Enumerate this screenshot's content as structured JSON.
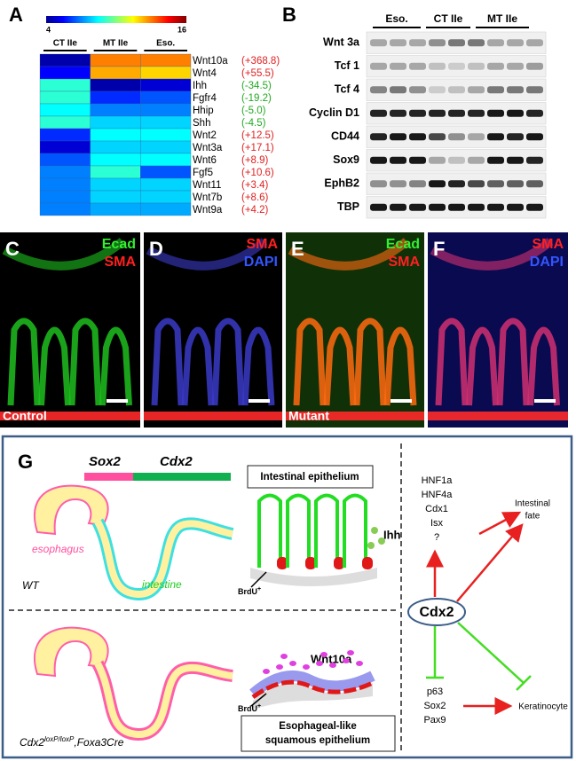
{
  "panel_a": {
    "label": "A",
    "colorbar_range": [
      4,
      16
    ],
    "groups": [
      "CT IIe",
      "MT IIe",
      "Eso."
    ],
    "genes": [
      "Wnt10a",
      "Wnt4",
      "Ihh",
      "Fgfr4",
      "Hhip",
      "Shh",
      "Wnt2",
      "Wnt3a",
      "Wnt6",
      "Fgf5",
      "Wnt11",
      "Wnt7b",
      "Wnt9a"
    ],
    "fold_changes": [
      "(+368.8)",
      "(+55.5)",
      "(-34.5)",
      "(-19.2)",
      "(-5.0)",
      "(-4.5)",
      "(+12.5)",
      "(+17.1)",
      "(+8.9)",
      "(+10.6)",
      "(+3.4)",
      "(+8.6)",
      "(+4.2)"
    ],
    "values": [
      [
        4.5,
        13,
        13
      ],
      [
        5.5,
        12.5,
        12
      ],
      [
        9,
        4.5,
        5
      ],
      [
        9,
        6,
        6.5
      ],
      [
        8.5,
        7,
        7
      ],
      [
        9,
        8,
        8
      ],
      [
        6,
        8.5,
        8.5
      ],
      [
        5,
        8,
        8
      ],
      [
        6.5,
        8.5,
        8.5
      ],
      [
        7,
        9,
        6.5
      ],
      [
        7,
        8,
        8
      ],
      [
        7,
        8,
        8
      ],
      [
        7,
        7.5,
        7.5
      ]
    ]
  },
  "panel_b": {
    "label": "B",
    "groups": [
      "Eso.",
      "CT IIe",
      "MT IIe"
    ],
    "proteins": [
      "Wnt 3a",
      "Tcf 1",
      "Tcf 4",
      "Cyclin D1",
      "CD44",
      "Sox9",
      "EphB2",
      "TBP"
    ]
  },
  "panel_c": {
    "label": "C",
    "stains": [
      "Ecad",
      "SMA"
    ],
    "condition": "Control"
  },
  "panel_d": {
    "label": "D",
    "stains": [
      "SMA",
      "DAPI"
    ]
  },
  "panel_e": {
    "label": "E",
    "stains": [
      "Ecad",
      "SMA"
    ],
    "condition": "Mutant"
  },
  "panel_f": {
    "label": "F",
    "stains": [
      "SMA",
      "DAPI"
    ]
  },
  "panel_g": {
    "label": "G",
    "sox2": "Sox2",
    "cdx2_bar": "Cdx2",
    "esophagus": "esophagus",
    "intestine": "intestine",
    "wt": "WT",
    "intestinal_box": "Intestinal epithelium",
    "ihh": "Ihh",
    "brdu": {
      "text": "BrdU",
      "sup": "+"
    },
    "wnt10a": "Wnt10a",
    "squamous_box": [
      "Esophageal-like",
      "squamous epithelium"
    ],
    "mutant": {
      "base": "Cdx2",
      "sup": "loxP/loxP",
      "rest": ",Foxa3Cre"
    },
    "targets_up": [
      "HNF1a",
      "HNF4a",
      "Cdx1",
      "Isx",
      "?"
    ],
    "intestinal_fate": [
      "Intestinal",
      "fate"
    ],
    "center": "Cdx2",
    "targets_down": [
      "p63",
      "Sox2",
      "Pax9"
    ],
    "keratinocyte": "Keratinocyte"
  }
}
